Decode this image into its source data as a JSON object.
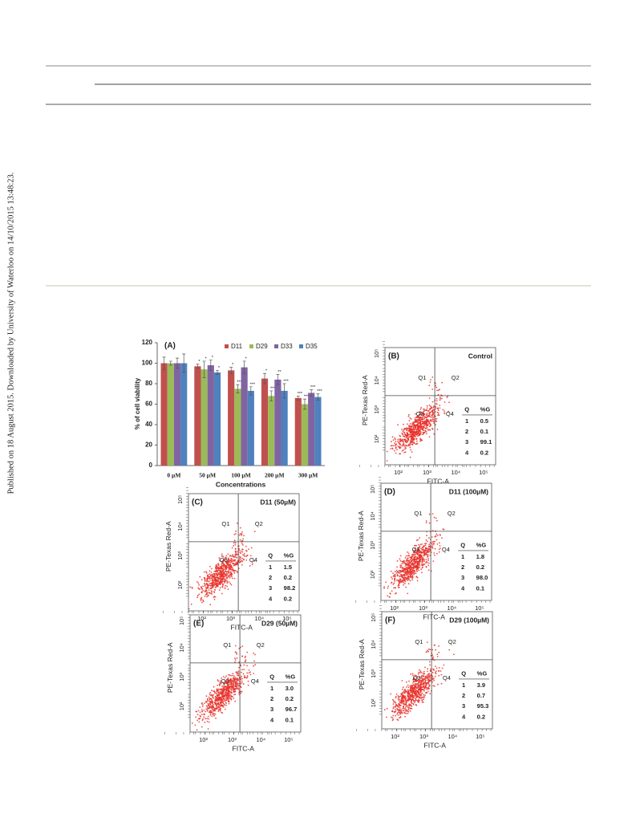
{
  "side_note": "Published on 18 August 2015. Downloaded by University of Waterloo on 14/10/2015 13:48:23.",
  "chart_data": {
    "type": "bar",
    "panel_label": "(A)",
    "ylabel": "% of cell viability",
    "xlabel": "Concentrations",
    "categories": [
      "0 µM",
      "50 µM",
      "100 µM",
      "200 µM",
      "300 µM"
    ],
    "ylim": [
      0,
      120
    ],
    "yticks": [
      0,
      20,
      40,
      60,
      80,
      100,
      120
    ],
    "series": [
      {
        "name": "D11",
        "color": "#c0504d",
        "values": [
          100,
          97,
          93,
          85,
          66
        ],
        "errors": [
          6,
          2,
          3,
          5,
          2
        ],
        "stars": [
          null,
          "*",
          "*",
          "*",
          "***"
        ]
      },
      {
        "name": "D29",
        "color": "#9bbb59",
        "values": [
          100,
          94,
          75,
          68,
          60
        ],
        "errors": [
          2,
          8,
          4,
          5,
          5
        ],
        "stars": [
          null,
          "*",
          "***",
          "***",
          "***"
        ]
      },
      {
        "name": "D33",
        "color": "#8064a2",
        "values": [
          100,
          98,
          96,
          84,
          71
        ],
        "errors": [
          5,
          5,
          6,
          5,
          3
        ],
        "stars": [
          null,
          "*",
          "*",
          "**",
          "***"
        ]
      },
      {
        "name": "D35",
        "color": "#4f81bd",
        "values": [
          100,
          91,
          73,
          73,
          67
        ],
        "errors": [
          9,
          2,
          4,
          7,
          3
        ],
        "stars": [
          null,
          "*",
          "***",
          "***",
          "***"
        ]
      }
    ]
  },
  "flow_axes": {
    "xlabel": "FITC-A",
    "ylabel": "PE-Texas Red-A",
    "ticks": [
      "10²",
      "10³",
      "10⁴",
      "10⁵"
    ],
    "quadrants": [
      "Q1",
      "Q2",
      "Q3",
      "Q4"
    ],
    "table_header": [
      "Q",
      "%G"
    ]
  },
  "flow_panels": [
    {
      "label": "(B)",
      "title": "Control",
      "rows": [
        [
          "1",
          "0.5"
        ],
        [
          "2",
          "0.1"
        ],
        [
          "3",
          "99.1"
        ],
        [
          "4",
          "0.2"
        ]
      ]
    },
    {
      "label": "(C)",
      "title": "D11 (50µM)",
      "rows": [
        [
          "1",
          "1.5"
        ],
        [
          "2",
          "0.2"
        ],
        [
          "3",
          "98.2"
        ],
        [
          "4",
          "0.2"
        ]
      ]
    },
    {
      "label": "(D)",
      "title": "D11 (100µM)",
      "rows": [
        [
          "1",
          "1.8"
        ],
        [
          "2",
          "0.2"
        ],
        [
          "3",
          "98.0"
        ],
        [
          "4",
          "0.1"
        ]
      ]
    },
    {
      "label": "(E)",
      "title": "D29 (50µM)",
      "rows": [
        [
          "1",
          "3.0"
        ],
        [
          "2",
          "0.2"
        ],
        [
          "3",
          "96.7"
        ],
        [
          "4",
          "0.1"
        ]
      ]
    },
    {
      "label": "(F)",
      "title": "D29 (100µM)",
      "rows": [
        [
          "1",
          "3.9"
        ],
        [
          "2",
          "0.7"
        ],
        [
          "3",
          "95.3"
        ],
        [
          "4",
          "0.2"
        ]
      ]
    }
  ]
}
